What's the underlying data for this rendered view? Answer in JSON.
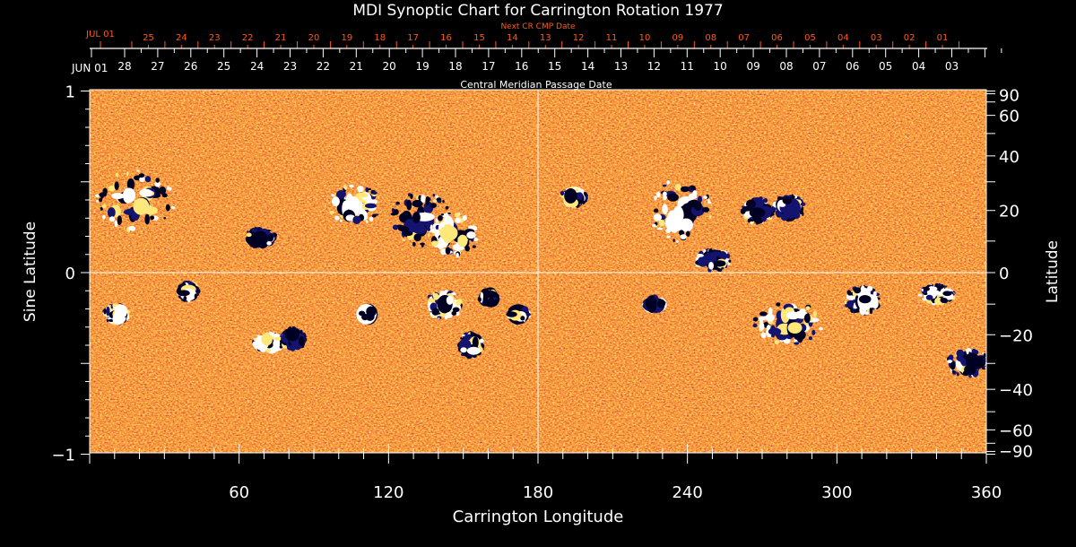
{
  "chart_data": {
    "type": "heatmap",
    "title": "MDI Synoptic Chart for Carrington Rotation 1977",
    "xlabel": "Carrington Longitude",
    "ylabel_left": "Sine Latitude",
    "ylabel_right": "Latitude",
    "xlim": [
      0,
      360
    ],
    "ylim": [
      -1,
      1
    ],
    "x_ticks": [
      "60",
      "120",
      "180",
      "240",
      "300",
      "360"
    ],
    "y_ticks_left": [
      "1",
      "0",
      "−1"
    ],
    "y_ticks_right": [
      "90",
      "60",
      "40",
      "20",
      "0",
      "−20",
      "−40",
      "−60",
      "−90"
    ],
    "y_ticks_right_values": [
      90,
      60,
      40,
      20,
      0,
      -20,
      -40,
      -60,
      -90
    ],
    "top_axis": {
      "label": "Central Meridian Passage Date",
      "start_label": "JUN 01",
      "dates": [
        "28",
        "27",
        "26",
        "25",
        "24",
        "23",
        "22",
        "21",
        "20",
        "19",
        "18",
        "17",
        "16",
        "15",
        "14",
        "13",
        "12",
        "11",
        "10",
        "09",
        "08",
        "07",
        "06",
        "05",
        "04",
        "03"
      ]
    },
    "next_cr_axis": {
      "label": "Next CR CMP Date",
      "start_label": "JUL 01",
      "dates": [
        "25",
        "24",
        "23",
        "22",
        "21",
        "20",
        "19",
        "18",
        "17",
        "16",
        "15",
        "14",
        "13",
        "12",
        "11",
        "10",
        "09",
        "08",
        "07",
        "06",
        "05",
        "04",
        "03",
        "02",
        "01"
      ],
      "color": "#ff5a14"
    },
    "colors": {
      "background": "#000000",
      "field_base": "#e0501a",
      "positive": "#ffffff",
      "negative": "#000033",
      "axes": "#ffffff"
    }
  }
}
